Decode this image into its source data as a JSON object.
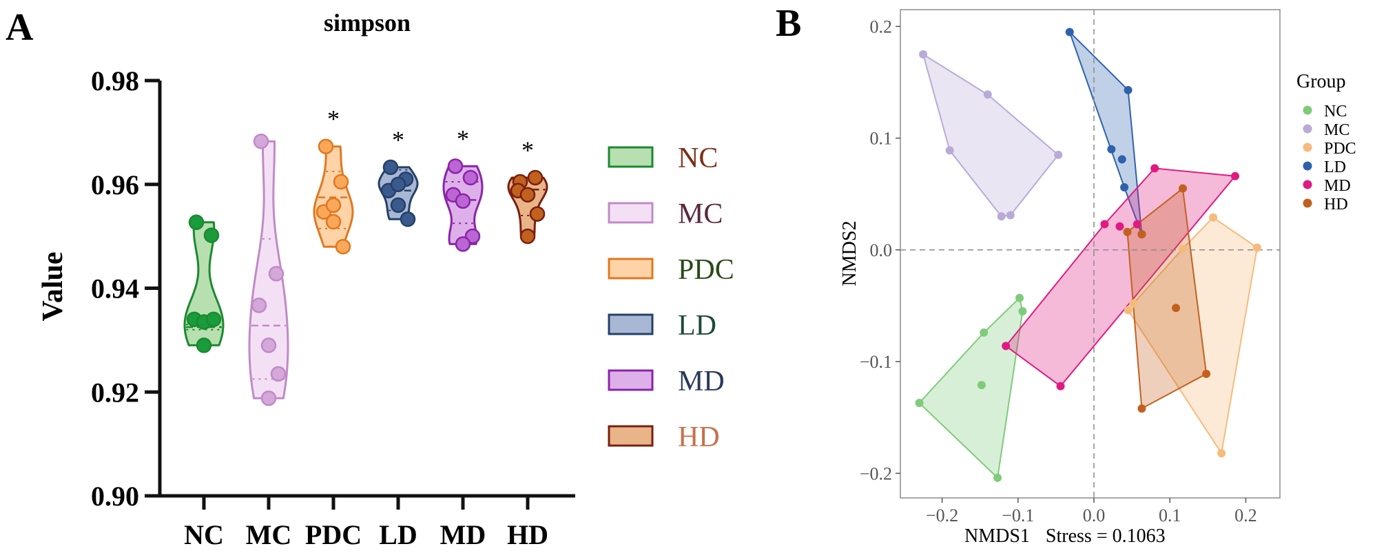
{
  "chart_data": [
    {
      "panel_label": "A",
      "type": "violin",
      "title": "simpson",
      "xlabel": "",
      "ylabel": "Value",
      "ylim": [
        0.9,
        0.98
      ],
      "yticks": [
        "0.90",
        "0.92",
        "0.94",
        "0.96",
        "0.98"
      ],
      "categories": [
        "NC",
        "MC",
        "PDC",
        "LD",
        "MD",
        "HD"
      ],
      "series": [
        {
          "name": "NC",
          "points": [
            0.9527,
            0.9502,
            0.934,
            0.9335,
            0.934,
            0.929
          ],
          "median": 0.9325,
          "q1": 0.932,
          "q3": 0.933,
          "fill": "#b8dfb0",
          "stroke": "#1a8a2e",
          "point": "#1a9b3c",
          "sig": ""
        },
        {
          "name": "MC",
          "points": [
            0.9683,
            0.9428,
            0.9367,
            0.929,
            0.9235,
            0.9188
          ],
          "median": 0.9328,
          "q1": 0.9225,
          "q3": 0.9495,
          "fill": "#f4e0f4",
          "stroke": "#c08ac8",
          "point": "#d4a8d8",
          "sig": ""
        },
        {
          "name": "PDC",
          "points": [
            0.9673,
            0.9605,
            0.9547,
            0.9528,
            0.948,
            0.956
          ],
          "median": 0.9575,
          "q1": 0.9515,
          "q3": 0.9625,
          "fill": "#ffd3a8",
          "stroke": "#e07820",
          "point": "#f9a85a",
          "sig": "*"
        },
        {
          "name": "LD",
          "points": [
            0.9633,
            0.961,
            0.9588,
            0.956,
            0.9533,
            0.96
          ],
          "median": 0.9588,
          "q1": 0.955,
          "q3": 0.9628,
          "fill": "#a8b8d4",
          "stroke": "#24406a",
          "point": "#3a5a8e",
          "sig": "*"
        },
        {
          "name": "MD",
          "points": [
            0.9635,
            0.9613,
            0.958,
            0.9568,
            0.95,
            0.9485
          ],
          "median": 0.957,
          "q1": 0.9525,
          "q3": 0.9605,
          "fill": "#deb0ea",
          "stroke": "#8a24a8",
          "point": "#bb66d4",
          "sig": "*"
        },
        {
          "name": "HD",
          "points": [
            0.9605,
            0.9613,
            0.9588,
            0.958,
            0.9543,
            0.95
          ],
          "median": 0.959,
          "q1": 0.954,
          "q3": 0.961,
          "fill": "#e8b488",
          "stroke": "#7a1e10",
          "point": "#c0621e",
          "sig": "*"
        }
      ],
      "legend": [
        {
          "label": "NC",
          "text_color": "#7a3018"
        },
        {
          "label": "MC",
          "text_color": "#5a2840"
        },
        {
          "label": "PDC",
          "text_color": "#2a4a18"
        },
        {
          "label": "LD",
          "text_color": "#1e4a3a"
        },
        {
          "label": "MD",
          "text_color": "#2a3a58"
        },
        {
          "label": "HD",
          "text_color": "#c8704a"
        }
      ]
    },
    {
      "panel_label": "B",
      "type": "scatter",
      "title": "",
      "xlabel": "NMDS1",
      "stress_label": "Stress = 0.1063",
      "ylabel": "NMDS2",
      "xlim": [
        -0.255,
        0.245
      ],
      "ylim": [
        -0.222,
        0.215
      ],
      "xticks": [
        -0.2,
        -0.1,
        0.0,
        0.1,
        0.2
      ],
      "xtick_labels": [
        "−0.2",
        "−0.1",
        "0.0",
        "0.1",
        "0.2"
      ],
      "yticks": [
        -0.2,
        -0.1,
        0.0,
        0.1,
        0.2
      ],
      "ytick_labels": [
        "−0.2",
        "−0.1",
        "0.0",
        "0.1",
        "0.2"
      ],
      "legend_title": "Group",
      "groups": [
        {
          "name": "NC",
          "color": "#7fcb7a",
          "points": [
            [
              -0.098,
              -0.043
            ],
            [
              -0.094,
              -0.055
            ],
            [
              -0.145,
              -0.074
            ],
            [
              -0.148,
              -0.121
            ],
            [
              -0.23,
              -0.137
            ],
            [
              -0.127,
              -0.204
            ]
          ]
        },
        {
          "name": "MC",
          "color": "#b9aad6",
          "points": [
            [
              -0.225,
              0.175
            ],
            [
              -0.14,
              0.139
            ],
            [
              -0.19,
              0.089
            ],
            [
              -0.047,
              0.085
            ],
            [
              -0.122,
              0.03
            ],
            [
              -0.11,
              0.031
            ]
          ]
        },
        {
          "name": "PDC",
          "color": "#f6bb7c",
          "points": [
            [
              0.157,
              0.029
            ],
            [
              0.215,
              0.002
            ],
            [
              0.117,
              0.001
            ],
            [
              0.052,
              -0.048
            ],
            [
              0.045,
              -0.054
            ],
            [
              0.168,
              -0.182
            ]
          ]
        },
        {
          "name": "LD",
          "color": "#2f62ac",
          "points": [
            [
              -0.032,
              0.195
            ],
            [
              0.045,
              0.143
            ],
            [
              0.023,
              0.09
            ],
            [
              0.037,
              0.081
            ],
            [
              0.04,
              0.056
            ],
            [
              0.063,
              0.014
            ]
          ]
        },
        {
          "name": "MD",
          "color": "#e01a82",
          "points": [
            [
              0.08,
              0.073
            ],
            [
              0.186,
              0.066
            ],
            [
              0.014,
              0.023
            ],
            [
              0.034,
              0.021
            ],
            [
              0.057,
              0.023
            ],
            [
              -0.116,
              -0.086
            ],
            [
              -0.044,
              -0.122
            ]
          ]
        },
        {
          "name": "HD",
          "color": "#c3601e",
          "points": [
            [
              0.117,
              0.055
            ],
            [
              0.044,
              0.016
            ],
            [
              0.108,
              -0.052
            ],
            [
              0.148,
              -0.111
            ],
            [
              0.063,
              -0.142
            ],
            [
              0.063,
              0.014
            ]
          ]
        }
      ]
    }
  ]
}
